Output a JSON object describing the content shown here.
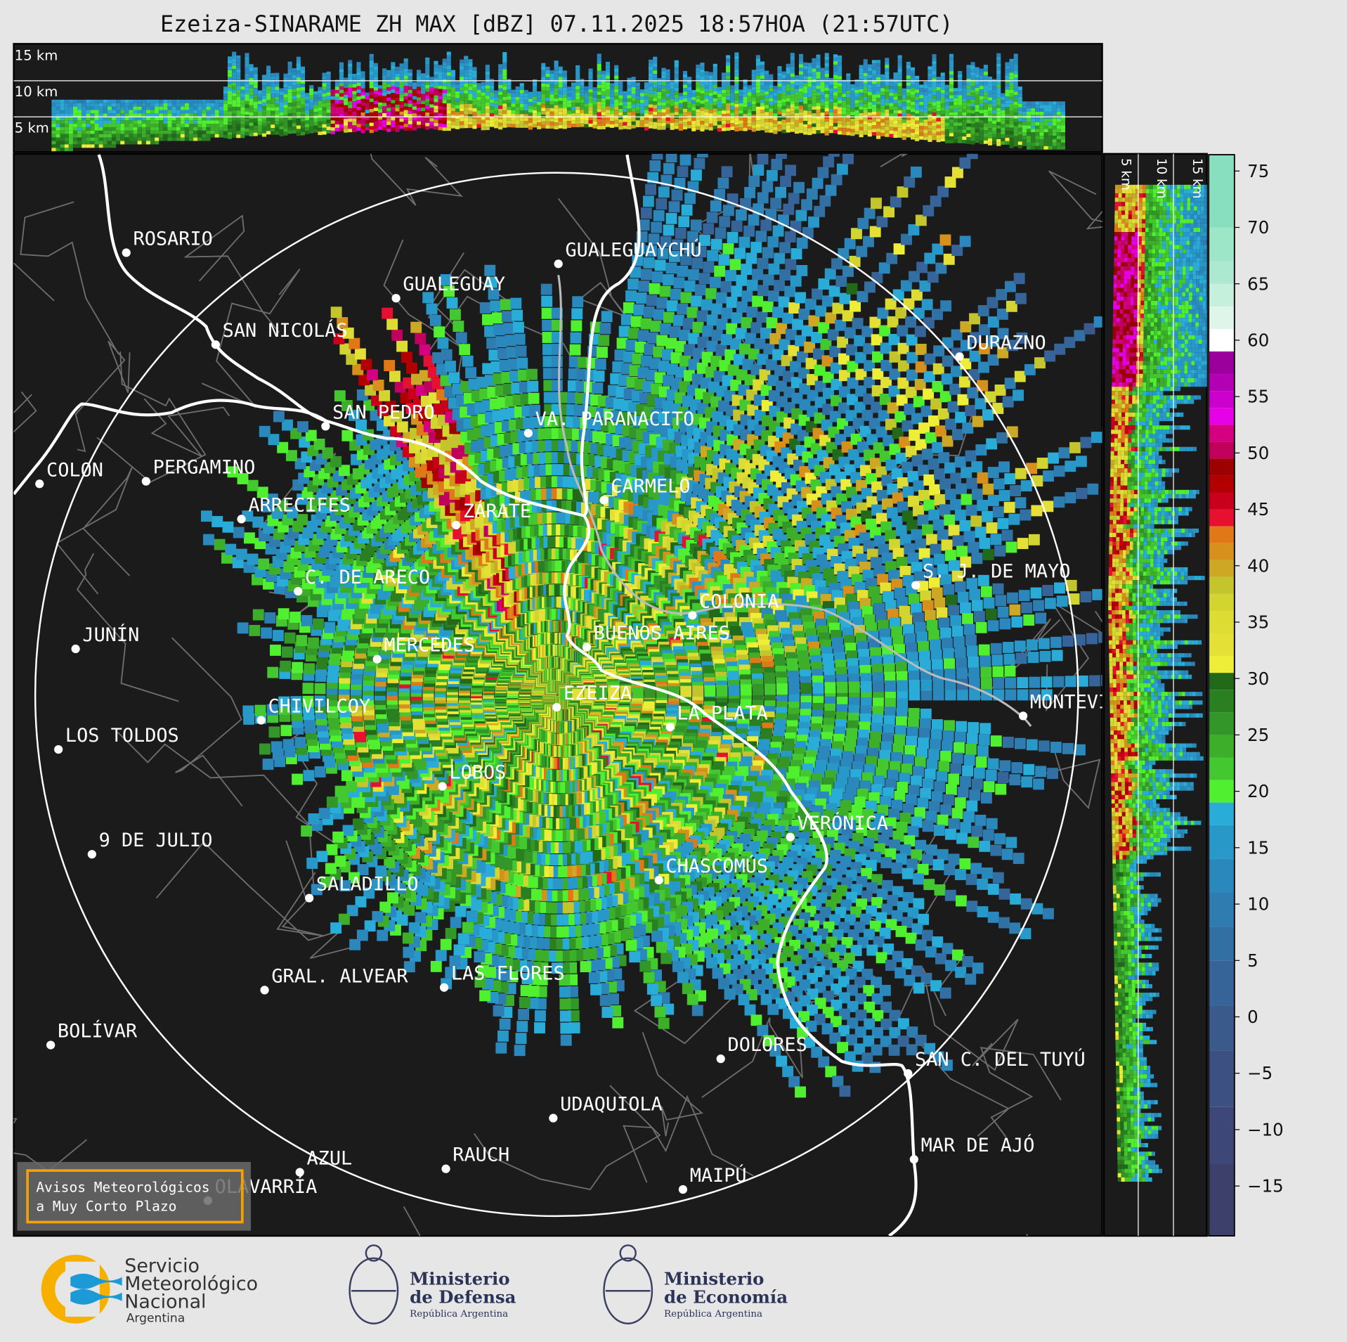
{
  "title": "Ezeiza-SINARAME ZH MAX [dBZ] 07.11.2025 18:57HOA (21:57UTC)",
  "top_panel": {
    "height_labels": [
      "15 km",
      "10 km",
      "5 km"
    ]
  },
  "side_panel": {
    "height_labels": [
      "5 km",
      "10 km",
      "15 km"
    ]
  },
  "colorbar": {
    "unit": "dBZ",
    "range": [
      -20,
      77
    ],
    "ticks": [
      "75",
      "70",
      "65",
      "60",
      "55",
      "50",
      "45",
      "40",
      "35",
      "30",
      "25",
      "20",
      "15",
      "10",
      "5",
      "0",
      "−5",
      "−10",
      "−15"
    ],
    "bands": [
      {
        "from": 70,
        "to": 77,
        "color": "#88dfbf"
      },
      {
        "from": 67,
        "to": 70,
        "color": "#9de6c8"
      },
      {
        "from": 65,
        "to": 67,
        "color": "#ade9d0"
      },
      {
        "from": 63,
        "to": 65,
        "color": "#c4f0dc"
      },
      {
        "from": 61,
        "to": 63,
        "color": "#dff5ea"
      },
      {
        "from": 59,
        "to": 61,
        "color": "#ffffff"
      },
      {
        "from": 57,
        "to": 59,
        "color": "#9c009c"
      },
      {
        "from": 55.5,
        "to": 57,
        "color": "#b400b4"
      },
      {
        "from": 54,
        "to": 55.5,
        "color": "#cc00cc"
      },
      {
        "from": 52.5,
        "to": 54,
        "color": "#e600e6"
      },
      {
        "from": 51,
        "to": 52.5,
        "color": "#d40080"
      },
      {
        "from": 49.5,
        "to": 51,
        "color": "#c0005c"
      },
      {
        "from": 48,
        "to": 49.5,
        "color": "#9c0000"
      },
      {
        "from": 46.5,
        "to": 48,
        "color": "#b20000"
      },
      {
        "from": 45,
        "to": 46.5,
        "color": "#c8001c"
      },
      {
        "from": 43.5,
        "to": 45,
        "color": "#e81030"
      },
      {
        "from": 42,
        "to": 43.5,
        "color": "#e07818"
      },
      {
        "from": 40.5,
        "to": 42,
        "color": "#d8901c"
      },
      {
        "from": 39,
        "to": 40.5,
        "color": "#cca824"
      },
      {
        "from": 37.5,
        "to": 39,
        "color": "#c4c42c"
      },
      {
        "from": 36,
        "to": 37.5,
        "color": "#d2d430"
      },
      {
        "from": 34,
        "to": 36,
        "color": "#dcdc34"
      },
      {
        "from": 32,
        "to": 34,
        "color": "#e4e036"
      },
      {
        "from": 30.5,
        "to": 32,
        "color": "#eeee38"
      },
      {
        "from": 29,
        "to": 30.5,
        "color": "#226a1a"
      },
      {
        "from": 27,
        "to": 29,
        "color": "#2a8020"
      },
      {
        "from": 25,
        "to": 27,
        "color": "#329628"
      },
      {
        "from": 23,
        "to": 25,
        "color": "#3cae2a"
      },
      {
        "from": 21,
        "to": 23,
        "color": "#44c830"
      },
      {
        "from": 19,
        "to": 21,
        "color": "#50ef30"
      },
      {
        "from": 17,
        "to": 19,
        "color": "#2aacd8"
      },
      {
        "from": 14,
        "to": 17,
        "color": "#2898c8"
      },
      {
        "from": 11,
        "to": 14,
        "color": "#2a88bc"
      },
      {
        "from": 8,
        "to": 11,
        "color": "#2e7cb0"
      },
      {
        "from": 5,
        "to": 8,
        "color": "#3270a4"
      },
      {
        "from": 1,
        "to": 5,
        "color": "#366498"
      },
      {
        "from": -3,
        "to": 1,
        "color": "#3a5a8c"
      },
      {
        "from": -8,
        "to": -3,
        "color": "#3c5082"
      },
      {
        "from": -13,
        "to": -8,
        "color": "#3e4878"
      },
      {
        "from": -20,
        "to": -13,
        "color": "#3e406c"
      }
    ]
  },
  "cities": [
    "ROSARIO",
    "GUALEGUAYCHÚ",
    "GUALEGUAY",
    "SAN NICOLÁS",
    "DURAZNO",
    "SAN PEDRO",
    "VA. PARANACITO",
    "COLON",
    "PERGAMINO",
    "CARMELO",
    "ZÁRATE",
    "ARRECIFES",
    "S. J. DE MAYO",
    "C. DE ARECO",
    "COLONIA",
    "JUNÍN",
    "BUENOS AIRES",
    "MERCEDES",
    "MONTEVIDEO",
    "EZEIZA",
    "CHIVILCOY",
    "LA PLATA",
    "LOS TOLDOS",
    "LOBOS",
    "VERÓNICA",
    "9 DE JULIO",
    "CHASCOMÚS",
    "SALADILLO",
    "GRAL. ALVEAR",
    "LAS FLORES",
    "BOLÍVAR",
    "DOLORES",
    "SAN C. DEL TUYÚ",
    "UDAQUIOLA",
    "RAUCH",
    "AZUL",
    "OLAVARRÍA",
    "MAIPÚ",
    "MAR DE AJÓ"
  ],
  "notice": {
    "line1": "Avisos Meteorológicos",
    "line2": "a Muy Corto Plazo",
    "border_color": "#f5a200"
  },
  "logos": {
    "smn": {
      "line1": "Servicio",
      "line2": "Meteorológico",
      "line3": "Nacional",
      "line4": "Argentina"
    },
    "defensa": {
      "line1": "Ministerio",
      "line2": "de Defensa",
      "line3": "República Argentina"
    },
    "economia": {
      "line1": "Ministerio",
      "line2": "de Economía",
      "line3": "República Argentina"
    }
  }
}
